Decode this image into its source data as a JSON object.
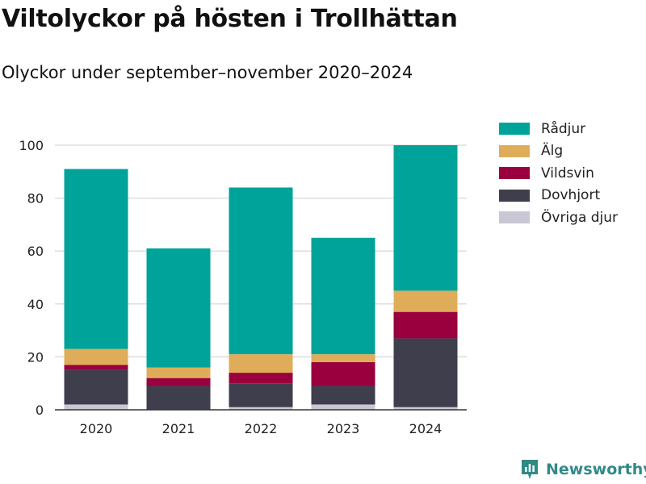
{
  "title": "Viltolyckor på hösten i Trollhättan",
  "subtitle": "Olyckor under september–november 2020–2024",
  "brand": {
    "name": "Newsworthy",
    "logo_icon": "newsworthy-chart-logo-icon",
    "color": "#2f8a86"
  },
  "chart_data": {
    "type": "bar",
    "stacked": true,
    "title": "Viltolyckor på hösten i Trollhättan",
    "subtitle": "Olyckor under september–november 2020–2024",
    "xlabel": "",
    "ylabel": "",
    "categories": [
      "2020",
      "2021",
      "2022",
      "2023",
      "2024"
    ],
    "ylim": [
      0,
      100
    ],
    "yticks": [
      0,
      20,
      40,
      60,
      80,
      100
    ],
    "grid": true,
    "legend_position": "right",
    "series": [
      {
        "name": "Övriga djur",
        "color": "#c9c7d3",
        "values": [
          2,
          0,
          1,
          2,
          1
        ]
      },
      {
        "name": "Dovhjort",
        "color": "#3f3e4d",
        "values": [
          13,
          9,
          9,
          7,
          26
        ]
      },
      {
        "name": "Vildsvin",
        "color": "#99003d",
        "values": [
          2,
          3,
          4,
          9,
          10
        ]
      },
      {
        "name": "Älg",
        "color": "#dfad5a",
        "values": [
          6,
          4,
          7,
          3,
          8
        ]
      },
      {
        "name": "Rådjur",
        "color": "#00a39a",
        "values": [
          68,
          45,
          63,
          44,
          55
        ]
      }
    ]
  }
}
